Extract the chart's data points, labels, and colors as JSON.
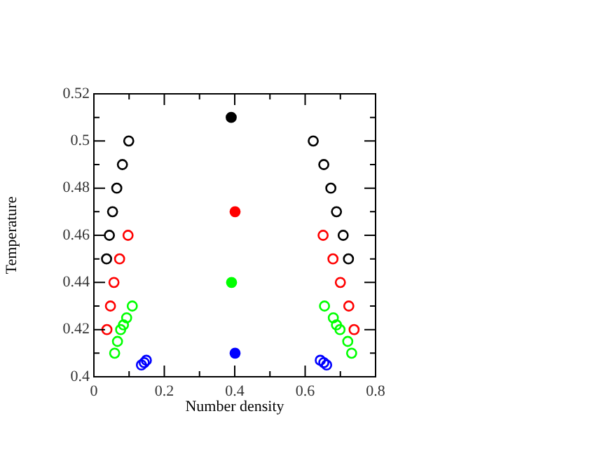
{
  "chart_data": {
    "type": "scatter",
    "xlabel": "Number density",
    "ylabel": "Temperature",
    "xlim": [
      0,
      0.8
    ],
    "ylim": [
      0.4,
      0.52
    ],
    "xticks": [
      0,
      {
        "value": 0.1,
        "label": null
      },
      0.2,
      {
        "value": 0.3,
        "label": null
      },
      0.4,
      {
        "value": 0.5,
        "label": null
      },
      0.6,
      {
        "value": 0.7,
        "label": null
      },
      0.8
    ],
    "yticks": [
      0.4,
      {
        "value": 0.41,
        "label": null
      },
      0.42,
      {
        "value": 0.43,
        "label": null
      },
      0.44,
      {
        "value": 0.45,
        "label": null
      },
      0.46,
      {
        "value": 0.47,
        "label": null
      },
      0.48,
      {
        "value": 0.49,
        "label": null
      },
      0.5,
      {
        "value": 0.51,
        "label": null
      },
      0.52
    ],
    "grid": false,
    "legend": false,
    "marker": "circle",
    "series": [
      {
        "color": "#000000",
        "x": [
          0.099,
          0.081,
          0.065,
          0.053,
          0.044,
          0.036,
          0.623,
          0.653,
          0.673,
          0.689,
          0.708,
          0.723
        ],
        "values": [
          0.5,
          0.49,
          0.48,
          0.47,
          0.46,
          0.45,
          0.5,
          0.49,
          0.48,
          0.47,
          0.46,
          0.45
        ]
      },
      {
        "color": "#ff0000",
        "x": [
          0.097,
          0.073,
          0.057,
          0.047,
          0.037,
          0.651,
          0.679,
          0.7,
          0.724,
          0.739
        ],
        "values": [
          0.46,
          0.45,
          0.44,
          0.43,
          0.42,
          0.46,
          0.45,
          0.44,
          0.43,
          0.42
        ]
      },
      {
        "color": "#00ff00",
        "x": [
          0.109,
          0.093,
          0.084,
          0.076,
          0.067,
          0.059,
          0.655,
          0.68,
          0.689,
          0.699,
          0.721,
          0.732
        ],
        "values": [
          0.43,
          0.425,
          0.422,
          0.42,
          0.415,
          0.41,
          0.43,
          0.425,
          0.422,
          0.42,
          0.415,
          0.41
        ]
      },
      {
        "color": "#0000ff",
        "x": [
          0.135,
          0.143,
          0.149,
          0.643,
          0.653,
          0.661
        ],
        "values": [
          0.405,
          0.406,
          0.407,
          0.407,
          0.406,
          0.405
        ]
      },
      {
        "color": "#000000",
        "x": [
          0.39
        ],
        "values": [
          0.51
        ]
      },
      {
        "color": "#ff0000",
        "x": [
          0.401
        ],
        "values": [
          0.47
        ]
      },
      {
        "color": "#00ff00",
        "x": [
          0.391
        ],
        "values": [
          0.44
        ]
      },
      {
        "color": "#0000ff",
        "x": [
          0.401
        ],
        "values": [
          0.41
        ]
      }
    ]
  }
}
